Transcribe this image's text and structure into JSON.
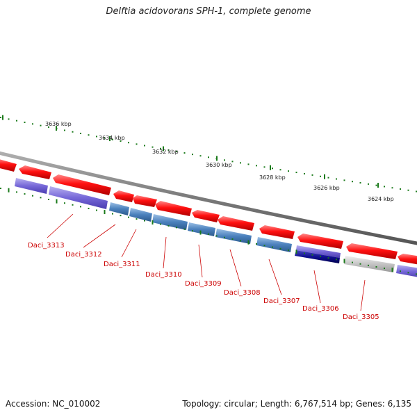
{
  "title": "Delftia acidovorans SPH-1, complete genome",
  "accession": "Accession: NC_010002",
  "summary": "Topology: circular; Length: 6,767,514 bp; Genes: 6,135",
  "ruler": {
    "ticks": [
      "3636 kbp",
      "3634 kbp",
      "3632 kbp",
      "3630 kbp",
      "3628 kbp",
      "3626 kbp",
      "3624 kbp"
    ]
  },
  "genes": {
    "forward": [
      {
        "strand": "+",
        "kind": "protein",
        "color": "#ff0000"
      }
    ],
    "labels": [
      "Daci_3313",
      "Daci_3312",
      "Daci_3311",
      "Daci_3310",
      "Daci_3309",
      "Daci_3308",
      "Daci_3307",
      "Daci_3306",
      "Daci_3305"
    ]
  },
  "colors": {
    "backbone": "#808080",
    "forward_gene": "#ff0000",
    "reverse_gene": "#7060d0",
    "steel_gene": "#4a7fb8",
    "navy_gene": "#000080",
    "grey_gene": "#bbbbbb",
    "ruler": "#1a7a1a",
    "label": "#cc0000"
  }
}
